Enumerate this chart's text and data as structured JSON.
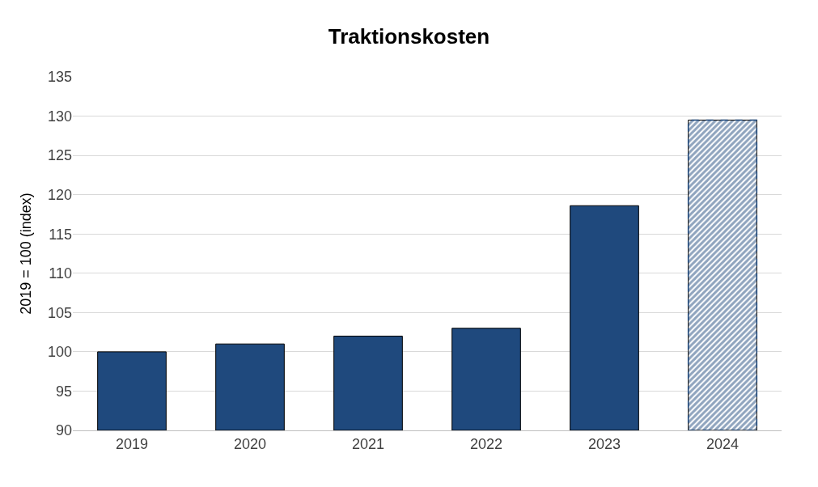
{
  "chart_data": {
    "type": "bar",
    "title": "Traktionskosten",
    "ylabel": "2019 = 100 (index)",
    "categories": [
      "2019",
      "2020",
      "2021",
      "2022",
      "2023",
      "2024"
    ],
    "series": [
      {
        "color": "#1f497d",
        "values": [
          100,
          101,
          102,
          103,
          118.6,
          null
        ]
      },
      {
        "color": "#1f497d",
        "line_style": "dashed",
        "values": [
          null,
          null,
          null,
          null,
          null,
          129.5
        ]
      }
    ],
    "ylim": [
      90,
      135
    ],
    "yticks": [
      90,
      95,
      100,
      105,
      110,
      115,
      120,
      125,
      130,
      135
    ],
    "grid": "y"
  }
}
